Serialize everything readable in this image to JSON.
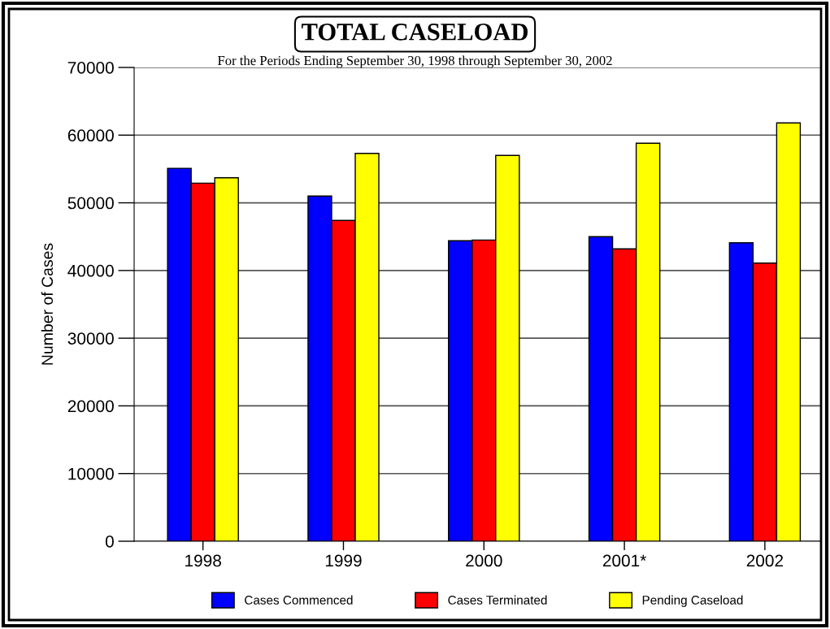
{
  "chart_data": {
    "type": "bar",
    "title": "TOTAL CASELOAD",
    "subtitle": "For the Periods Ending September 30, 1998 through September 30, 2002",
    "ylabel": "Number of Cases",
    "categories": [
      "1998",
      "1999",
      "2000",
      "2001*",
      "2002"
    ],
    "series": [
      {
        "name": "Cases Commenced",
        "color": "#0000ff",
        "values": [
          55100,
          51000,
          44400,
          45000,
          44100
        ]
      },
      {
        "name": "Cases Terminated",
        "color": "#ff0000",
        "values": [
          52900,
          47400,
          44500,
          43200,
          41100
        ]
      },
      {
        "name": "Pending Caseload",
        "color": "#ffff00",
        "values": [
          53700,
          57300,
          57000,
          58800,
          61800
        ]
      }
    ],
    "ylim": [
      0,
      70000
    ],
    "yticks": [
      0,
      10000,
      20000,
      30000,
      40000,
      50000,
      60000,
      70000
    ],
    "grid": "y",
    "legend": "bottom"
  }
}
